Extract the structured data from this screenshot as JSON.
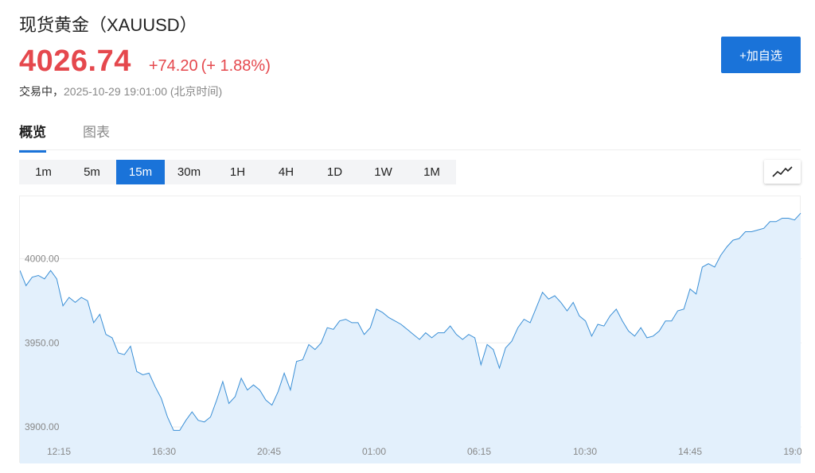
{
  "header": {
    "title": "现货黄金（XAUUSD）",
    "price": "4026.74",
    "change": "+74.20",
    "change_pct": "(+ 1.88%)",
    "status": "交易中，",
    "timestamp": "2025-10-29 19:01:00 (北京时间)",
    "add_button": "+加自选"
  },
  "colors": {
    "up": "#e5484d",
    "accent": "#1a73d9",
    "area": "#e3f0fc",
    "line": "#3a8fd6"
  },
  "tabs": [
    {
      "label": "概览",
      "active": true
    },
    {
      "label": "图表",
      "active": false
    }
  ],
  "periods": [
    {
      "label": "1m",
      "active": false
    },
    {
      "label": "5m",
      "active": false
    },
    {
      "label": "15m",
      "active": true
    },
    {
      "label": "30m",
      "active": false
    },
    {
      "label": "1H",
      "active": false
    },
    {
      "label": "4H",
      "active": false
    },
    {
      "label": "1D",
      "active": false
    },
    {
      "label": "1W",
      "active": false
    },
    {
      "label": "1M",
      "active": false
    }
  ],
  "chart_type_icon": "line-chart-icon",
  "chart_data": {
    "type": "area",
    "x_ticks": [
      "12:15",
      "16:30",
      "20:45",
      "01:00",
      "06:15",
      "10:30",
      "14:45",
      "19:0"
    ],
    "y_ticks": [
      {
        "value": 4000,
        "label": "4000.00"
      },
      {
        "value": 3950,
        "label": "3950.00"
      },
      {
        "value": 3900,
        "label": "3900.00"
      }
    ],
    "ylim": [
      3893,
      4037
    ],
    "grid": true,
    "values": [
      3993,
      3984,
      3989,
      3990,
      3988,
      3993,
      3988,
      3972,
      3977,
      3974,
      3977,
      3975,
      3962,
      3967,
      3955,
      3953,
      3944,
      3943,
      3948,
      3933,
      3931,
      3932,
      3924,
      3917,
      3906,
      3898,
      3898,
      3904,
      3909,
      3904,
      3903,
      3906,
      3916,
      3927,
      3914,
      3918,
      3929,
      3922,
      3925,
      3922,
      3916,
      3913,
      3921,
      3932,
      3922,
      3939,
      3940,
      3949,
      3946,
      3950,
      3959,
      3958,
      3963,
      3964,
      3962,
      3962,
      3955,
      3959,
      3970,
      3968,
      3965,
      3963,
      3961,
      3958,
      3955,
      3952,
      3956,
      3953,
      3956,
      3956,
      3960,
      3955,
      3952,
      3955,
      3953,
      3937,
      3949,
      3946,
      3935,
      3947,
      3951,
      3959,
      3964,
      3962,
      3971,
      3980,
      3976,
      3978,
      3974,
      3969,
      3974,
      3966,
      3963,
      3954,
      3961,
      3960,
      3966,
      3970,
      3963,
      3957,
      3954,
      3959,
      3953,
      3954,
      3957,
      3963,
      3963,
      3969,
      3970,
      3982,
      3979,
      3995,
      3997,
      3995,
      4002,
      4007,
      4011,
      4012,
      4016,
      4016,
      4017,
      4018,
      4022,
      4022,
      4024,
      4024,
      4023,
      4027
    ]
  }
}
